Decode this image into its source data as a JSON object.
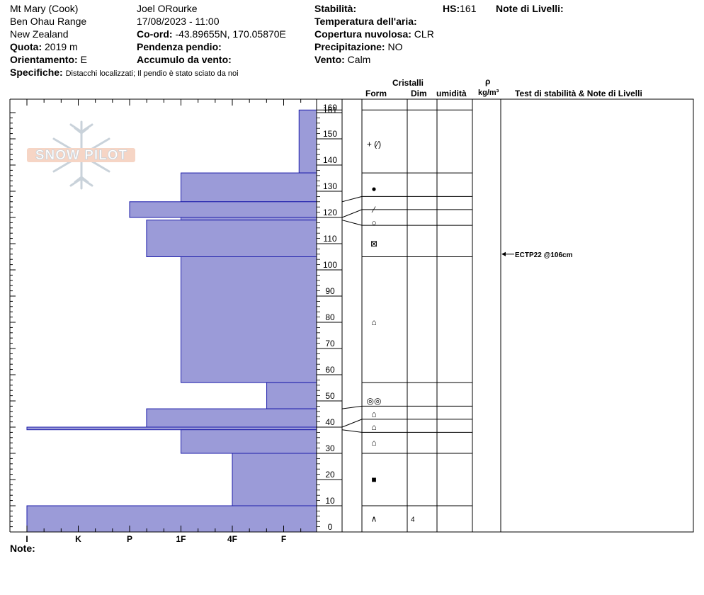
{
  "header": {
    "location": "Mt Mary (Cook)",
    "range": "Ben Ohau Range",
    "country": "New Zealand",
    "elevation_label": "Quota:",
    "elevation_value": "2019 m",
    "aspect_label": "Orientamento:",
    "aspect_value": "E",
    "observer": "Joel ORourke",
    "datetime": "17/08/2023 - 11:00",
    "coord_label": "Co-ord:",
    "coord_value": "-43.89655N, 170.05870E",
    "slope_label": "Pendenza pendio:",
    "slope_value": "",
    "wind_loading_label": "Accumulo da vento:",
    "wind_loading_value": "",
    "stability_label": "Stabilità:",
    "stability_value": "",
    "air_temp_label": "Temperatura dell'aria:",
    "air_temp_value": "",
    "sky_label": "Copertura nuvolosa:",
    "sky_value": "CLR",
    "precip_label": "Precipitazione:",
    "precip_value": "NO",
    "wind_label": "Vento:",
    "wind_value": "Calm",
    "hs_label": "HS:",
    "hs_value": "161",
    "layer_notes_label": "Note di Livelli:",
    "specifics_label": "Specifiche:",
    "specifics_value": "Distacchi localizzati;  Il pendio è stato sciato da noi"
  },
  "columns": {
    "crystals": "Cristalli",
    "form": "Form",
    "dim": "Dim",
    "moisture": "umidità",
    "rho": "ρ",
    "density_unit": "kg/m³",
    "tests": "Test di stabilità & Note di Livelli"
  },
  "footer": {
    "notes_label": "Note:"
  },
  "logo": {
    "text": "SNOW PILOT"
  },
  "colors": {
    "hardness_fill": "#9b9bd8",
    "hardness_stroke": "#1c1caa"
  },
  "chart_data": {
    "type": "hardness-profile",
    "hardness_scale": [
      "I",
      "K",
      "P",
      "1F",
      "4F",
      "F"
    ],
    "depth_axis": {
      "min": 0,
      "max": 160,
      "step": 10,
      "unit": "cm"
    },
    "total_height": 161,
    "layers": [
      {
        "top": 161,
        "bottom": 137,
        "hardness_index": 6.3,
        "grain": "+ (⁄)",
        "grain_size": ""
      },
      {
        "top": 137,
        "bottom": 126,
        "hardness_index": 4.0,
        "grain": "●",
        "grain_size": ""
      },
      {
        "top": 126,
        "bottom": 120,
        "hardness_index": 3.0,
        "grain": "⁄",
        "grain_size": ""
      },
      {
        "top": 120,
        "bottom": 119,
        "hardness_index": 4.0,
        "grain": "",
        "grain_size": ""
      },
      {
        "top": 119,
        "bottom": 105,
        "hardness_index": 3.33,
        "grain": "○",
        "grain_size": ""
      },
      {
        "top": 105,
        "bottom": 57,
        "hardness_index": 4.0,
        "grain": "□",
        "grain_size": ""
      },
      {
        "top": 57,
        "bottom": 47,
        "hardness_index": 5.67,
        "grain": "⌂",
        "grain_size": ""
      },
      {
        "top": 47,
        "bottom": 40,
        "hardness_index": 3.33,
        "grain": "◎◎",
        "grain_size": ""
      },
      {
        "top": 40,
        "bottom": 39,
        "hardness_index": 1.0,
        "grain": "⌂",
        "grain_size": ""
      },
      {
        "top": 39,
        "bottom": 30,
        "hardness_index": 4.0,
        "grain": "⌂",
        "grain_size": ""
      },
      {
        "top": 30,
        "bottom": 10,
        "hardness_index": 5.0,
        "grain": "⌂",
        "grain_size": ""
      },
      {
        "top": 10,
        "bottom": 0,
        "hardness_index": 1.0,
        "grain": "■",
        "grain_size": "4"
      }
    ],
    "grain_rows": [
      {
        "depth": 148,
        "symbol": "+ (⁄)"
      },
      {
        "depth": 131,
        "symbol": "●"
      },
      {
        "depth": 123,
        "symbol": "⁄"
      },
      {
        "depth": 118,
        "symbol": "○"
      },
      {
        "depth": 110,
        "symbol": "⊠"
      },
      {
        "depth": 80,
        "symbol": "⌂"
      },
      {
        "depth": 50,
        "symbol": "◎◎"
      },
      {
        "depth": 45,
        "symbol": "⌂"
      },
      {
        "depth": 40,
        "symbol": "⌂"
      },
      {
        "depth": 34,
        "symbol": "⌂"
      },
      {
        "depth": 20,
        "symbol": "■"
      },
      {
        "depth": 5,
        "symbol": "∧"
      }
    ],
    "grain_size_rows": [
      {
        "depth": 5,
        "value": "4"
      }
    ],
    "layer_boundaries": [
      161,
      137,
      128,
      123,
      117,
      105,
      57,
      48,
      43,
      38,
      30,
      10,
      0
    ],
    "boundary_connectors": [
      {
        "chart_depth": 126,
        "table_depth": 128
      },
      {
        "chart_depth": 120,
        "table_depth": 123
      },
      {
        "chart_depth": 119,
        "table_depth": 117
      },
      {
        "chart_depth": 47,
        "table_depth": 48
      },
      {
        "chart_depth": 40,
        "table_depth": 43
      },
      {
        "chart_depth": 39,
        "table_depth": 38
      }
    ],
    "tests": [
      {
        "depth": 106,
        "label": "ECTP22 @106cm"
      }
    ]
  }
}
